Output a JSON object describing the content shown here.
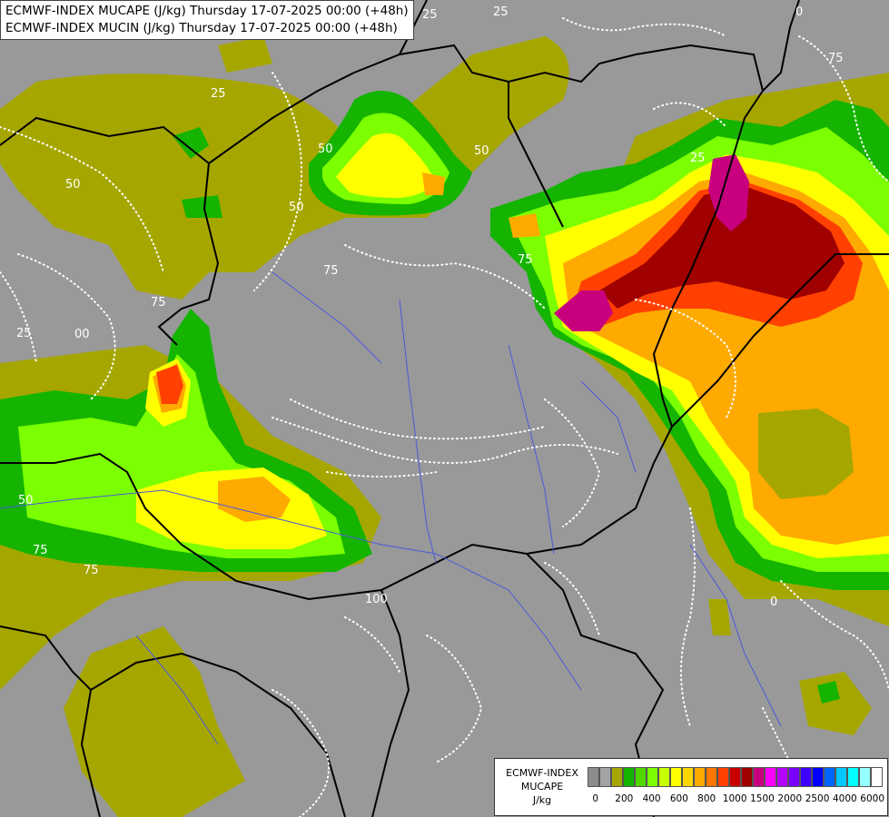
{
  "title_lines": [
    "ECMWF-INDEX MUCAPE (J/kg) Thursday 17-07-2025 00:00 (+48h)",
    "ECMWF-INDEX MUCIN (J/kg) Thursday 17-07-2025 00:00 (+48h)"
  ],
  "legend": {
    "line1": "ECMWF-INDEX",
    "line2": "MUCAPE",
    "line3": "J/kg",
    "colors": [
      "#8c8c8c",
      "#a3a3a3",
      "#a6a600",
      "#14b400",
      "#50d700",
      "#7cff00",
      "#c8ff00",
      "#ffff00",
      "#ffd700",
      "#ffaa00",
      "#ff7800",
      "#ff4000",
      "#c80000",
      "#a00000",
      "#c8007e",
      "#ff00ff",
      "#b400ff",
      "#7800ff",
      "#3c00ff",
      "#0000ff",
      "#0064ff",
      "#00c8ff",
      "#00ffff",
      "#96ffff",
      "#ffffff"
    ],
    "ticks": [
      "0",
      "200",
      "400",
      "600",
      "800",
      "1000",
      "1500",
      "2000",
      "2500",
      "4000",
      "6000"
    ]
  },
  "mucin_contour_labels": [
    "25",
    "50",
    "75",
    "50",
    "25",
    "50",
    "75",
    "25",
    "00",
    "50",
    "75",
    "75",
    "25",
    "0",
    "100",
    "75",
    "50",
    "25",
    "0",
    "75"
  ],
  "color_keys": {
    "background": "#999999",
    "border": "#000000",
    "river": "#4a5ad8"
  }
}
